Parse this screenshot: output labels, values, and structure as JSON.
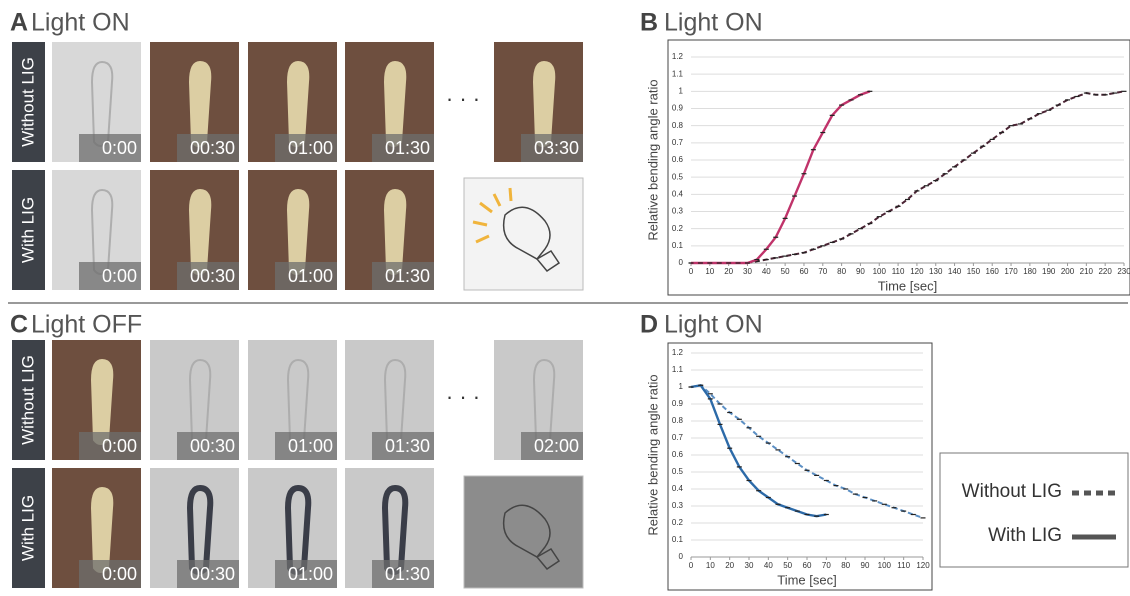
{
  "panels": [
    {
      "letter": "A",
      "title": "Light ON",
      "rows": [
        {
          "label": "Without LIG",
          "times": [
            "0:00",
            "00:30",
            "01:00",
            "01:30",
            "03:30"
          ]
        },
        {
          "label": "With LIG",
          "times": [
            "0:00",
            "00:30",
            "01:00",
            "01:30"
          ]
        }
      ]
    },
    {
      "letter": "C",
      "title": "Light OFF",
      "rows": [
        {
          "label": "Without LIG",
          "times": [
            "0:00",
            "00:30",
            "01:00",
            "01:30",
            "02:00"
          ]
        },
        {
          "label": "With LIG",
          "times": [
            "0:00",
            "00:30",
            "01:00",
            "01:30"
          ]
        }
      ]
    }
  ],
  "chart_data": [
    {
      "type": "line",
      "letter": "B",
      "title": "Light ON",
      "x_label": "Time [sec]",
      "y_label": "Relative bending angle ratio",
      "xlim": [
        0,
        230
      ],
      "xticks": [
        0,
        10,
        20,
        30,
        40,
        50,
        60,
        70,
        80,
        90,
        100,
        110,
        120,
        130,
        140,
        150,
        160,
        170,
        180,
        190,
        200,
        210,
        220,
        230
      ],
      "ylim": [
        0,
        1.2
      ],
      "yticks": [
        0,
        0.1,
        0.2,
        0.3,
        0.4,
        0.5,
        0.6,
        0.7,
        0.8,
        0.9,
        1,
        1.1,
        1.2
      ],
      "grid": true,
      "series": [
        {
          "name": "Without LIG",
          "color": "#4a2333",
          "line_style": "dashed",
          "x": [
            0,
            5,
            10,
            15,
            20,
            25,
            30,
            35,
            40,
            45,
            50,
            55,
            60,
            65,
            70,
            75,
            80,
            85,
            90,
            95,
            100,
            105,
            110,
            115,
            120,
            125,
            130,
            135,
            140,
            145,
            150,
            155,
            160,
            165,
            170,
            175,
            180,
            185,
            190,
            195,
            200,
            205,
            210,
            215,
            220,
            225,
            230
          ],
          "values": [
            0,
            0,
            0,
            0,
            0,
            0,
            0,
            0.01,
            0.02,
            0.03,
            0.04,
            0.05,
            0.06,
            0.08,
            0.1,
            0.12,
            0.14,
            0.17,
            0.2,
            0.23,
            0.27,
            0.3,
            0.33,
            0.37,
            0.42,
            0.45,
            0.48,
            0.52,
            0.56,
            0.6,
            0.64,
            0.68,
            0.72,
            0.76,
            0.8,
            0.81,
            0.84,
            0.87,
            0.89,
            0.92,
            0.95,
            0.97,
            0.99,
            0.98,
            0.98,
            0.99,
            1
          ]
        },
        {
          "name": "With LIG",
          "color": "#c0336a",
          "line_style": "solid",
          "x": [
            0,
            5,
            10,
            15,
            20,
            25,
            30,
            35,
            40,
            45,
            50,
            55,
            60,
            65,
            70,
            75,
            80,
            85,
            90,
            95
          ],
          "values": [
            0,
            0,
            0,
            0,
            0,
            0,
            0,
            0.02,
            0.08,
            0.15,
            0.26,
            0.39,
            0.52,
            0.66,
            0.76,
            0.86,
            0.92,
            0.95,
            0.98,
            1
          ]
        }
      ]
    },
    {
      "type": "line",
      "letter": "D",
      "title": "Light ON",
      "x_label": "Time [sec]",
      "y_label": "Relative bending angle ratio",
      "xlim": [
        0,
        120
      ],
      "xticks": [
        0,
        10,
        20,
        30,
        40,
        50,
        60,
        70,
        80,
        90,
        100,
        110,
        120
      ],
      "ylim": [
        0,
        1.2
      ],
      "yticks": [
        0,
        0.1,
        0.2,
        0.3,
        0.4,
        0.5,
        0.6,
        0.7,
        0.8,
        0.9,
        1,
        1.1,
        1.2
      ],
      "grid": true,
      "series": [
        {
          "name": "Without LIG",
          "color": "#5b8fc4",
          "line_style": "dashed",
          "x": [
            0,
            5,
            10,
            15,
            20,
            25,
            30,
            35,
            40,
            45,
            50,
            55,
            60,
            65,
            70,
            75,
            80,
            85,
            90,
            95,
            100,
            105,
            110,
            115,
            120
          ],
          "values": [
            1,
            1.01,
            0.96,
            0.9,
            0.85,
            0.81,
            0.76,
            0.71,
            0.67,
            0.63,
            0.59,
            0.55,
            0.51,
            0.48,
            0.45,
            0.42,
            0.4,
            0.37,
            0.35,
            0.33,
            0.31,
            0.29,
            0.27,
            0.25,
            0.23
          ]
        },
        {
          "name": "With LIG",
          "color": "#2c6aa8",
          "line_style": "solid",
          "x": [
            0,
            5,
            10,
            15,
            20,
            25,
            30,
            35,
            40,
            45,
            50,
            55,
            60,
            65,
            70
          ],
          "values": [
            1,
            1.01,
            0.93,
            0.78,
            0.64,
            0.53,
            0.45,
            0.39,
            0.35,
            0.31,
            0.29,
            0.27,
            0.25,
            0.24,
            0.25
          ]
        }
      ]
    }
  ]
}
